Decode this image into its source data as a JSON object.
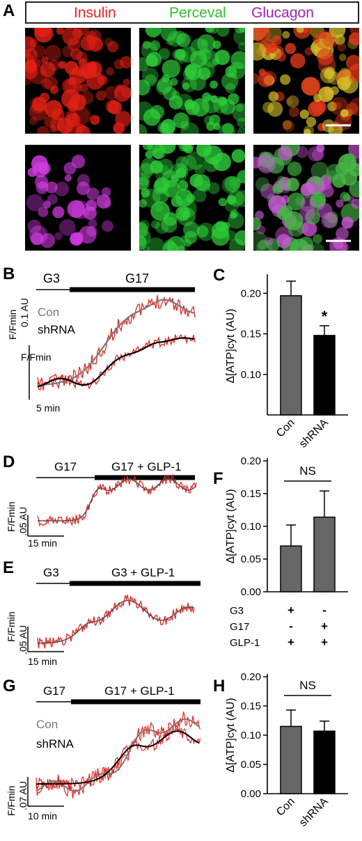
{
  "panels": {
    "A": {
      "label": "A",
      "legend": [
        {
          "text": "Insulin",
          "color": "#e8231f"
        },
        {
          "text": "Perceval",
          "color": "#2fbf2a"
        },
        {
          "text": "Glucagon",
          "color": "#a21fb8"
        }
      ],
      "images": [
        {
          "name": "insulin-image",
          "stain": "insulin",
          "color": "#e02015"
        },
        {
          "name": "perceval-image-top",
          "stain": "perceval",
          "color": "#2ecc3a"
        },
        {
          "name": "merge-insulin-perceval",
          "stain": "merge",
          "color": "#c7a020"
        },
        {
          "name": "glucagon-image",
          "stain": "glucagon",
          "color": "#d23be0"
        },
        {
          "name": "perceval-image-bottom",
          "stain": "perceval",
          "color": "#2ecc3a"
        },
        {
          "name": "merge-glucagon-perceval",
          "stain": "merge",
          "color": "#a77db0"
        }
      ]
    },
    "B": {
      "label": "B",
      "condition_left": "G3",
      "condition_right": "G17",
      "legend_con": "Con",
      "legend_shrna": "shRNA",
      "y_scale_label": "F/Fmin",
      "y_scale_value": "0.1 AU",
      "x_scale_label": "5 min"
    },
    "C": {
      "label": "C",
      "ylabel": "Δ[ATP]cyt (AU)",
      "significance": "*"
    },
    "D": {
      "label": "D",
      "condition_left": "G17",
      "condition_right": "G17 + GLP-1",
      "y_scale_label": "F/Fmin",
      "y_scale_value": ".05 AU",
      "x_scale_label": "15 min"
    },
    "E": {
      "label": "E",
      "condition_left": "G3",
      "condition_right": "G3 + GLP-1",
      "y_scale_label": "F/Fmin",
      "y_scale_value": ".05 AU",
      "x_scale_label": "15 min"
    },
    "F": {
      "label": "F",
      "ylabel": "Δ[ATP]cyt (AU)",
      "significance": "NS",
      "factor_rows": [
        {
          "name": "G3",
          "values": [
            "+",
            "-"
          ]
        },
        {
          "name": "G17",
          "values": [
            "-",
            "+"
          ]
        },
        {
          "name": "GLP-1",
          "values": [
            "+",
            "+"
          ]
        }
      ]
    },
    "G": {
      "label": "G",
      "condition_left": "G17",
      "condition_right": "G17 + GLP-1",
      "legend_con": "Con",
      "legend_shrna": "shRNA",
      "y_scale_label": "F/Fmin",
      "y_scale_value": ".07 AU",
      "x_scale_label": "10 min"
    },
    "H": {
      "label": "H",
      "ylabel": "Δ[ATP]cyt (AU)",
      "significance": "NS"
    }
  },
  "chart_data": [
    {
      "panel": "C",
      "type": "bar",
      "categories": [
        "Con",
        "shRNA"
      ],
      "values": [
        0.197,
        0.148
      ],
      "errors": [
        0.018,
        0.012
      ],
      "bar_colors": [
        "#666666",
        "#000000"
      ],
      "ylabel": "Δ[ATP]cyt (AU)",
      "ylim": [
        0.05,
        0.22
      ],
      "yticks": [
        0.1,
        0.15,
        0.2
      ],
      "ytick_labels": [
        "0.10",
        "0.15",
        "0.20"
      ]
    },
    {
      "panel": "F",
      "type": "bar",
      "categories": [
        "G3 + GLP-1",
        "G17 + GLP-1"
      ],
      "values": [
        0.07,
        0.114
      ],
      "errors": [
        0.032,
        0.04
      ],
      "bar_colors": [
        "#666666",
        "#666666"
      ],
      "ylabel": "Δ[ATP]cyt (AU)",
      "ylim": [
        0,
        0.2
      ],
      "yticks": [
        0.0,
        0.05,
        0.1,
        0.15,
        0.2
      ],
      "ytick_labels": [
        "0.00",
        "0.05",
        "0.10",
        "0.15",
        "0.20"
      ]
    },
    {
      "panel": "H",
      "type": "bar",
      "categories": [
        "Con",
        "shRNA"
      ],
      "values": [
        0.115,
        0.107
      ],
      "errors": [
        0.028,
        0.017
      ],
      "bar_colors": [
        "#666666",
        "#000000"
      ],
      "ylabel": "Δ[ATP]cyt (AU)",
      "ylim": [
        0,
        0.2
      ],
      "yticks": [
        0.0,
        0.05,
        0.1,
        0.15,
        0.2
      ],
      "ytick_labels": [
        "0.00",
        "0.05",
        "0.10",
        "0.15",
        "0.20"
      ]
    }
  ]
}
